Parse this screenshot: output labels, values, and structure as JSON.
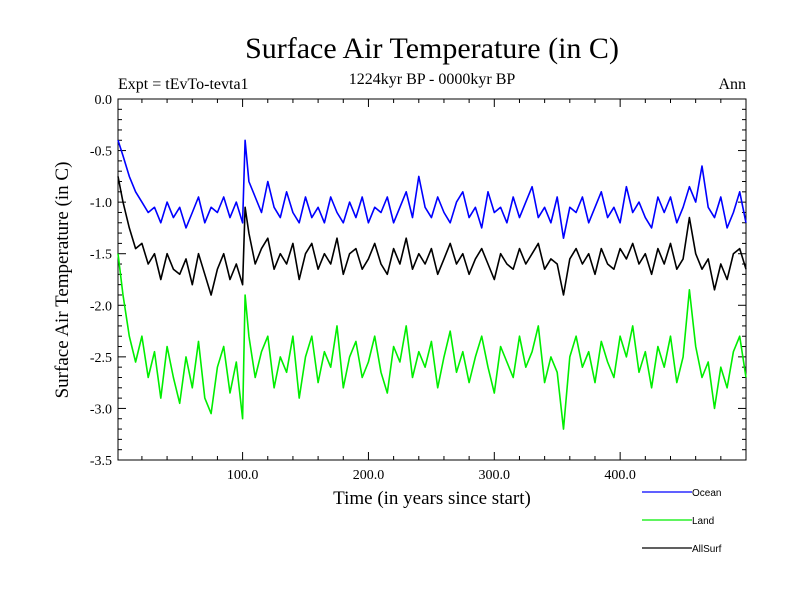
{
  "chart_data": {
    "type": "line",
    "title": "Surface Air Temperature (in C)",
    "subtitle": "1224kyr BP - 0000kyr BP",
    "experiment_label": "Expt = tEvTo-tevta1",
    "season_label": "Ann",
    "xlabel": "Time (in years since start)",
    "ylabel": "Surface Air Temperature (in C)",
    "xlim": [
      1,
      500
    ],
    "ylim": [
      -3.5,
      0.0
    ],
    "x_ticks": [
      100,
      200,
      300,
      400
    ],
    "x_tick_labels": [
      "100.0",
      "200.0",
      "300.0",
      "400.0"
    ],
    "y_ticks": [
      0.0,
      -0.5,
      -1.0,
      -1.5,
      -2.0,
      -2.5,
      -3.0,
      -3.5
    ],
    "y_tick_labels": [
      "0.0",
      "-0.5",
      "-1.0",
      "-1.5",
      "-2.0",
      "-2.5",
      "-3.0",
      "-3.5"
    ],
    "legend_position": "bottom-right, outside plot",
    "series": [
      {
        "name": "Ocean",
        "color": "#0000ff",
        "x": [
          1,
          5,
          10,
          15,
          20,
          25,
          30,
          35,
          40,
          45,
          50,
          55,
          60,
          65,
          70,
          75,
          80,
          85,
          90,
          95,
          100,
          102,
          105,
          110,
          115,
          120,
          125,
          130,
          135,
          140,
          145,
          150,
          155,
          160,
          165,
          170,
          175,
          180,
          185,
          190,
          195,
          200,
          205,
          210,
          215,
          220,
          225,
          230,
          235,
          240,
          245,
          250,
          255,
          260,
          265,
          270,
          275,
          280,
          285,
          290,
          295,
          300,
          305,
          310,
          315,
          320,
          325,
          330,
          335,
          340,
          345,
          350,
          355,
          360,
          365,
          370,
          375,
          380,
          385,
          390,
          395,
          400,
          405,
          410,
          415,
          420,
          425,
          430,
          435,
          440,
          445,
          450,
          455,
          460,
          465,
          470,
          475,
          480,
          485,
          490,
          495,
          500
        ],
        "values": [
          -0.4,
          -0.55,
          -0.75,
          -0.9,
          -1.0,
          -1.1,
          -1.05,
          -1.2,
          -1.0,
          -1.15,
          -1.05,
          -1.25,
          -1.1,
          -0.95,
          -1.2,
          -1.05,
          -1.1,
          -0.95,
          -1.15,
          -1.0,
          -1.2,
          -0.4,
          -0.8,
          -0.95,
          -1.1,
          -0.8,
          -1.05,
          -1.15,
          -0.9,
          -1.1,
          -1.2,
          -0.95,
          -1.15,
          -1.05,
          -1.2,
          -0.95,
          -1.1,
          -1.2,
          -1.0,
          -1.15,
          -0.95,
          -1.2,
          -1.05,
          -1.1,
          -0.95,
          -1.2,
          -1.05,
          -0.9,
          -1.15,
          -0.75,
          -1.05,
          -1.15,
          -0.95,
          -1.1,
          -1.2,
          -1.0,
          -0.9,
          -1.15,
          -1.05,
          -1.25,
          -0.9,
          -1.1,
          -1.05,
          -1.2,
          -0.95,
          -1.15,
          -1.0,
          -0.85,
          -1.15,
          -1.05,
          -1.2,
          -0.95,
          -1.35,
          -1.05,
          -1.1,
          -0.95,
          -1.2,
          -1.05,
          -0.9,
          -1.15,
          -1.05,
          -1.2,
          -0.85,
          -1.1,
          -1.0,
          -1.15,
          -1.25,
          -0.95,
          -1.1,
          -0.95,
          -1.2,
          -1.05,
          -0.85,
          -1.0,
          -0.65,
          -1.05,
          -1.15,
          -0.95,
          -1.25,
          -1.1,
          -0.9,
          -1.2
        ]
      },
      {
        "name": "Land",
        "color": "#00ee00",
        "x": [
          1,
          5,
          10,
          15,
          20,
          25,
          30,
          35,
          40,
          45,
          50,
          55,
          60,
          65,
          70,
          75,
          80,
          85,
          90,
          95,
          100,
          102,
          105,
          110,
          115,
          120,
          125,
          130,
          135,
          140,
          145,
          150,
          155,
          160,
          165,
          170,
          175,
          180,
          185,
          190,
          195,
          200,
          205,
          210,
          215,
          220,
          225,
          230,
          235,
          240,
          245,
          250,
          255,
          260,
          265,
          270,
          275,
          280,
          285,
          290,
          295,
          300,
          305,
          310,
          315,
          320,
          325,
          330,
          335,
          340,
          345,
          350,
          355,
          360,
          365,
          370,
          375,
          380,
          385,
          390,
          395,
          400,
          405,
          410,
          415,
          420,
          425,
          430,
          435,
          440,
          445,
          450,
          455,
          460,
          465,
          470,
          475,
          480,
          485,
          490,
          495,
          500
        ],
        "values": [
          -1.5,
          -1.9,
          -2.3,
          -2.55,
          -2.3,
          -2.7,
          -2.45,
          -2.9,
          -2.4,
          -2.7,
          -2.95,
          -2.5,
          -2.8,
          -2.35,
          -2.9,
          -3.05,
          -2.6,
          -2.4,
          -2.85,
          -2.55,
          -3.1,
          -1.9,
          -2.3,
          -2.7,
          -2.45,
          -2.3,
          -2.8,
          -2.5,
          -2.65,
          -2.3,
          -2.9,
          -2.5,
          -2.3,
          -2.75,
          -2.45,
          -2.6,
          -2.2,
          -2.8,
          -2.5,
          -2.35,
          -2.7,
          -2.55,
          -2.3,
          -2.65,
          -2.85,
          -2.4,
          -2.55,
          -2.2,
          -2.7,
          -2.45,
          -2.6,
          -2.35,
          -2.8,
          -2.5,
          -2.25,
          -2.65,
          -2.45,
          -2.75,
          -2.5,
          -2.3,
          -2.6,
          -2.85,
          -2.4,
          -2.55,
          -2.7,
          -2.3,
          -2.6,
          -2.45,
          -2.2,
          -2.75,
          -2.5,
          -2.65,
          -3.2,
          -2.5,
          -2.3,
          -2.6,
          -2.45,
          -2.75,
          -2.35,
          -2.55,
          -2.7,
          -2.3,
          -2.5,
          -2.2,
          -2.65,
          -2.45,
          -2.8,
          -2.4,
          -2.6,
          -2.3,
          -2.75,
          -2.5,
          -1.85,
          -2.4,
          -2.7,
          -2.55,
          -3.0,
          -2.6,
          -2.8,
          -2.45,
          -2.3,
          -2.7
        ]
      },
      {
        "name": "AllSurf",
        "color": "#000000",
        "x": [
          1,
          5,
          10,
          15,
          20,
          25,
          30,
          35,
          40,
          45,
          50,
          55,
          60,
          65,
          70,
          75,
          80,
          85,
          90,
          95,
          100,
          102,
          105,
          110,
          115,
          120,
          125,
          130,
          135,
          140,
          145,
          150,
          155,
          160,
          165,
          170,
          175,
          180,
          185,
          190,
          195,
          200,
          205,
          210,
          215,
          220,
          225,
          230,
          235,
          240,
          245,
          250,
          255,
          260,
          265,
          270,
          275,
          280,
          285,
          290,
          295,
          300,
          305,
          310,
          315,
          320,
          325,
          330,
          335,
          340,
          345,
          350,
          355,
          360,
          365,
          370,
          375,
          380,
          385,
          390,
          395,
          400,
          405,
          410,
          415,
          420,
          425,
          430,
          435,
          440,
          445,
          450,
          455,
          460,
          465,
          470,
          475,
          480,
          485,
          490,
          495,
          500
        ],
        "values": [
          -0.75,
          -1.0,
          -1.25,
          -1.45,
          -1.4,
          -1.6,
          -1.5,
          -1.75,
          -1.5,
          -1.65,
          -1.7,
          -1.55,
          -1.8,
          -1.5,
          -1.7,
          -1.9,
          -1.65,
          -1.5,
          -1.75,
          -1.6,
          -1.8,
          -1.05,
          -1.3,
          -1.6,
          -1.45,
          -1.35,
          -1.65,
          -1.5,
          -1.6,
          -1.4,
          -1.75,
          -1.5,
          -1.4,
          -1.65,
          -1.5,
          -1.6,
          -1.35,
          -1.7,
          -1.5,
          -1.45,
          -1.65,
          -1.55,
          -1.4,
          -1.6,
          -1.7,
          -1.45,
          -1.6,
          -1.35,
          -1.65,
          -1.5,
          -1.6,
          -1.45,
          -1.7,
          -1.55,
          -1.4,
          -1.6,
          -1.5,
          -1.7,
          -1.55,
          -1.45,
          -1.6,
          -1.75,
          -1.5,
          -1.6,
          -1.65,
          -1.45,
          -1.6,
          -1.5,
          -1.4,
          -1.65,
          -1.55,
          -1.6,
          -1.9,
          -1.55,
          -1.45,
          -1.6,
          -1.5,
          -1.7,
          -1.45,
          -1.6,
          -1.65,
          -1.45,
          -1.55,
          -1.4,
          -1.6,
          -1.5,
          -1.7,
          -1.45,
          -1.6,
          -1.4,
          -1.65,
          -1.55,
          -1.15,
          -1.5,
          -1.65,
          -1.55,
          -1.85,
          -1.6,
          -1.75,
          -1.5,
          -1.45,
          -1.65
        ]
      }
    ]
  }
}
